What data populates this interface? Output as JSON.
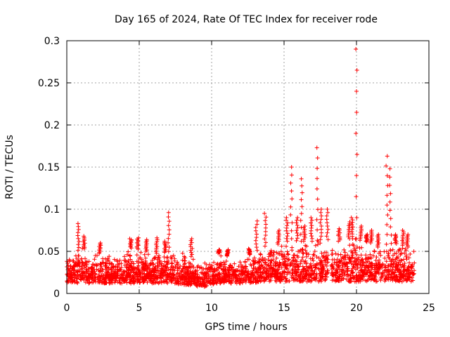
{
  "chart_data": {
    "type": "scatter",
    "title": "Day 165 of 2024, Rate Of TEC Index for receiver rode",
    "xlabel": "GPS time / hours",
    "ylabel": "ROTI / TECUs",
    "xlim": [
      0,
      25
    ],
    "ylim": [
      0,
      0.3
    ],
    "xticks": [
      "0",
      "5",
      "10",
      "15",
      "20",
      "25"
    ],
    "yticks": [
      "0",
      "0.05",
      "0.1",
      "0.15",
      "0.2",
      "0.25",
      "0.3"
    ],
    "grid": true,
    "marker": "+",
    "series": [
      {
        "name": "ROTI",
        "color": "#ff0000",
        "baseline_band": [
          [
            0.0,
            0.012,
            0.048
          ],
          [
            0.5,
            0.012,
            0.045
          ],
          [
            1.0,
            0.012,
            0.055
          ],
          [
            1.5,
            0.012,
            0.05
          ],
          [
            2.0,
            0.012,
            0.048
          ],
          [
            2.5,
            0.012,
            0.047
          ],
          [
            3.0,
            0.012,
            0.048
          ],
          [
            3.5,
            0.012,
            0.046
          ],
          [
            4.0,
            0.012,
            0.05
          ],
          [
            4.5,
            0.012,
            0.055
          ],
          [
            5.0,
            0.012,
            0.052
          ],
          [
            5.5,
            0.012,
            0.05
          ],
          [
            6.0,
            0.012,
            0.048
          ],
          [
            6.5,
            0.012,
            0.047
          ],
          [
            7.0,
            0.012,
            0.05
          ],
          [
            7.5,
            0.012,
            0.048
          ],
          [
            8.0,
            0.01,
            0.05
          ],
          [
            8.5,
            0.01,
            0.045
          ],
          [
            9.0,
            0.008,
            0.04
          ],
          [
            9.5,
            0.008,
            0.04
          ],
          [
            10.0,
            0.01,
            0.042
          ],
          [
            10.5,
            0.012,
            0.048
          ],
          [
            11.0,
            0.012,
            0.045
          ],
          [
            11.5,
            0.012,
            0.042
          ],
          [
            12.0,
            0.012,
            0.043
          ],
          [
            12.5,
            0.012,
            0.045
          ],
          [
            13.0,
            0.012,
            0.05
          ],
          [
            13.5,
            0.014,
            0.055
          ],
          [
            14.0,
            0.014,
            0.058
          ],
          [
            14.5,
            0.014,
            0.058
          ],
          [
            15.0,
            0.014,
            0.06
          ],
          [
            15.5,
            0.014,
            0.065
          ],
          [
            16.0,
            0.014,
            0.062
          ],
          [
            16.5,
            0.014,
            0.062
          ],
          [
            17.0,
            0.014,
            0.062
          ],
          [
            17.5,
            0.014,
            0.064
          ],
          [
            18.0,
            0.016,
            0.064
          ],
          [
            18.5,
            0.014,
            0.062
          ],
          [
            19.0,
            0.014,
            0.062
          ],
          [
            19.5,
            0.014,
            0.065
          ],
          [
            20.0,
            0.014,
            0.065
          ],
          [
            20.5,
            0.014,
            0.062
          ],
          [
            21.0,
            0.014,
            0.06
          ],
          [
            21.5,
            0.014,
            0.055
          ],
          [
            22.0,
            0.014,
            0.058
          ],
          [
            22.5,
            0.014,
            0.06
          ],
          [
            23.0,
            0.014,
            0.058
          ],
          [
            23.5,
            0.014,
            0.055
          ],
          [
            24.0,
            0.014,
            0.052
          ]
        ],
        "data_gap": [
          18.05,
          18.25
        ],
        "peaks": [
          [
            0.8,
            0.083
          ],
          [
            1.2,
            0.068
          ],
          [
            2.3,
            0.06
          ],
          [
            4.4,
            0.065
          ],
          [
            4.9,
            0.066
          ],
          [
            5.5,
            0.064
          ],
          [
            6.2,
            0.066
          ],
          [
            6.8,
            0.062
          ],
          [
            7.05,
            0.096
          ],
          [
            8.6,
            0.065
          ],
          [
            10.5,
            0.052
          ],
          [
            11.1,
            0.052
          ],
          [
            12.6,
            0.053
          ],
          [
            13.1,
            0.086
          ],
          [
            13.7,
            0.095
          ],
          [
            14.6,
            0.075
          ],
          [
            15.2,
            0.09
          ],
          [
            15.5,
            0.15
          ],
          [
            15.9,
            0.09
          ],
          [
            16.2,
            0.136
          ],
          [
            16.4,
            0.08
          ],
          [
            16.9,
            0.09
          ],
          [
            17.3,
            0.173
          ],
          [
            17.55,
            0.1
          ],
          [
            18.0,
            0.1
          ],
          [
            18.8,
            0.077
          ],
          [
            19.5,
            0.085
          ],
          [
            19.7,
            0.09
          ],
          [
            20.0,
            0.29
          ],
          [
            20.3,
            0.08
          ],
          [
            20.7,
            0.07
          ],
          [
            21.0,
            0.075
          ],
          [
            21.5,
            0.07
          ],
          [
            22.1,
            0.163
          ],
          [
            22.35,
            0.148
          ],
          [
            22.7,
            0.07
          ],
          [
            23.2,
            0.075
          ],
          [
            23.5,
            0.07
          ]
        ]
      }
    ]
  }
}
